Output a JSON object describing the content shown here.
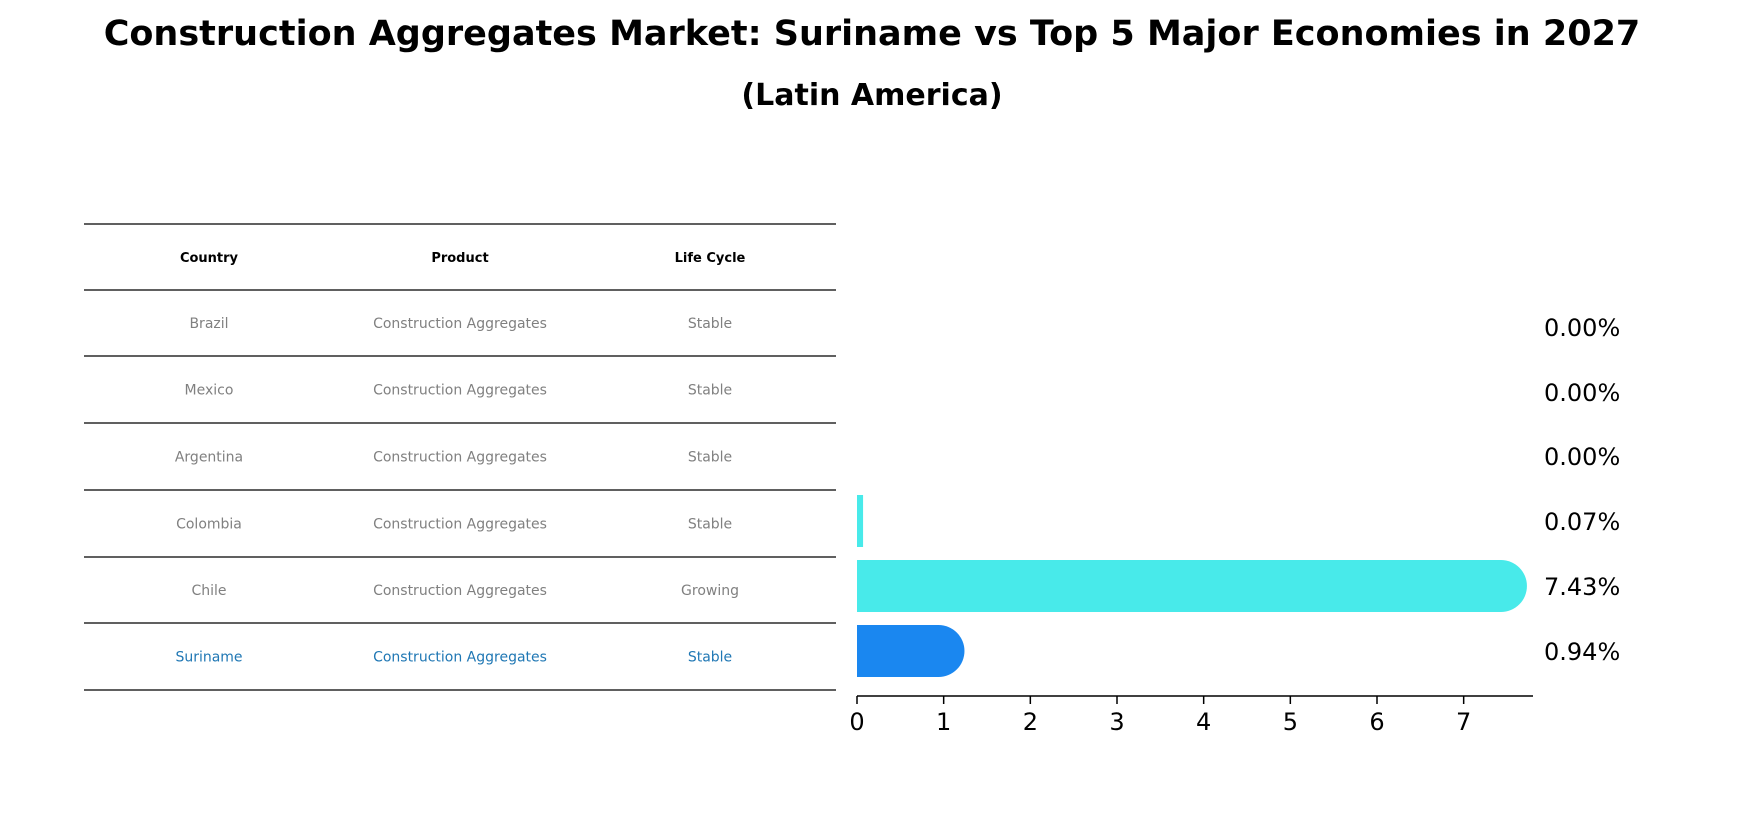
{
  "title": "Construction Aggregates Market: Suriname vs Top 5 Major Economies in 2027",
  "subtitle": "(Latin America)",
  "table": {
    "headers": [
      "Country",
      "Product",
      "Life Cycle"
    ],
    "rows": [
      {
        "country": "Brazil",
        "product": "Construction Aggregates",
        "life_cycle": "Stable"
      },
      {
        "country": "Mexico",
        "product": "Construction Aggregates",
        "life_cycle": "Stable"
      },
      {
        "country": "Argentina",
        "product": "Construction Aggregates",
        "life_cycle": "Stable"
      },
      {
        "country": "Colombia",
        "product": "Construction Aggregates",
        "life_cycle": "Stable"
      },
      {
        "country": "Chile",
        "product": "Construction Aggregates",
        "life_cycle": "Growing"
      },
      {
        "country": "Suriname",
        "product": "Construction Aggregates",
        "life_cycle": "Stable"
      }
    ]
  },
  "colors": {
    "others_text": "#808080",
    "highlight_text": "#1f77b4",
    "others_bar": "#48eaea",
    "highlight_bar": "#1a87f0"
  },
  "chart_data": {
    "type": "bar",
    "orientation": "horizontal",
    "categories": [
      "Brazil",
      "Mexico",
      "Argentina",
      "Colombia",
      "Chile",
      "Suriname"
    ],
    "values": [
      0.0,
      0.0,
      0.0,
      0.07,
      7.43,
      0.94
    ],
    "value_labels": [
      "0.00%",
      "0.00%",
      "0.00%",
      "0.07%",
      "7.43%",
      "0.94%"
    ],
    "highlight": "Suriname",
    "xlim": [
      0,
      7.8
    ],
    "xticks": [
      0,
      1,
      2,
      3,
      4,
      5,
      6,
      7
    ],
    "grid": false
  }
}
